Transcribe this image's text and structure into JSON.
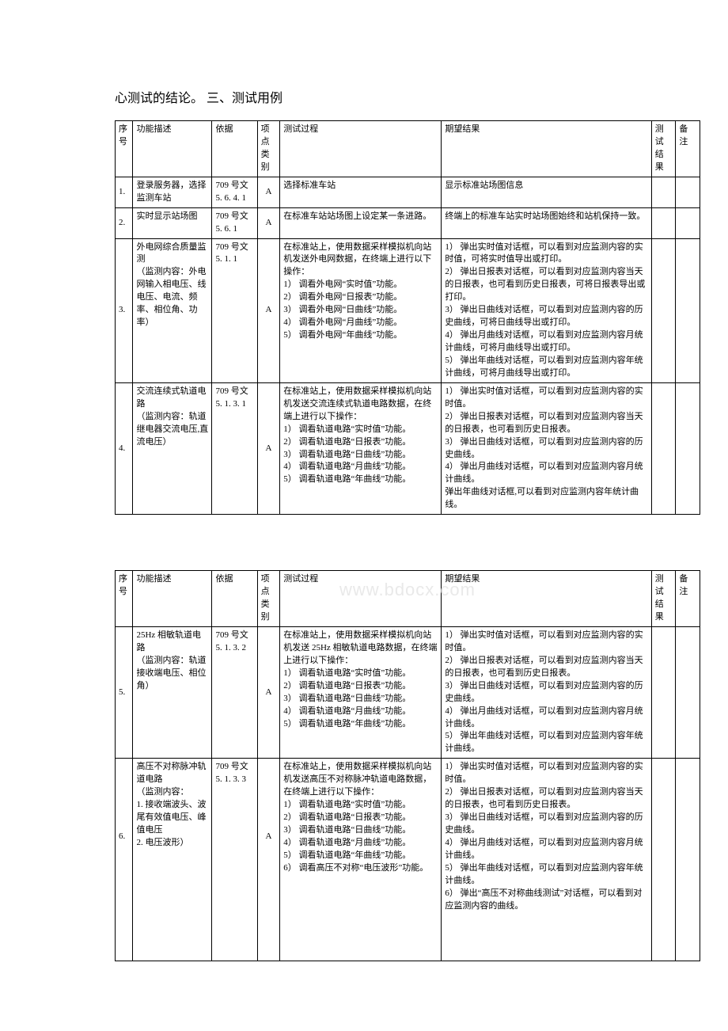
{
  "title": "心测试的结论。 三、测试用例",
  "watermark": "www.bdocx.com",
  "headers": {
    "idx": "序号",
    "func": "功能描述",
    "basis": "依据",
    "cat": "项点类别",
    "proc": "测试过程",
    "exp": "期望结果",
    "res": "测试结果",
    "note": "备注"
  },
  "table1": [
    {
      "idx": "1.",
      "func": "登录服务器，选择监测车站",
      "basis": "709 号文5. 6. 4. 1",
      "cat": "A",
      "proc": "选择标准车站",
      "exp": "显示标准站场图信息"
    },
    {
      "idx": "2.",
      "func": "实时显示站场图",
      "basis": "709 号文5. 6. 1",
      "cat": "A",
      "proc": "在标准车站站场图上设定某一条进路。",
      "exp": "终端上的标准车站实时站场图始终和站机保持一致。"
    },
    {
      "idx": "3.",
      "func": "外电网综合质量监测\n（监测内容：外电网输入相电压、线电压、电流、频率、相位角、功率）",
      "basis": "709 号文5. 1. 1",
      "cat": "A",
      "proc": "在标准站上，使用数据采样模拟机向站机发送外电网数据，在终端上进行以下操作：\n1） 调看外电网“实时值”功能。\n2） 调看外电网“日报表”功能。\n3） 调看外电网“日曲线”功能。\n4） 调看外电网“月曲线”功能。\n5） 调看外电网“年曲线”功能。",
      "exp": "1） 弹出实时值对话框，可以看到对应监测内容的实时值，可将实时值导出或打印。\n2） 弹出日报表对话框，可以看到对应监测内容当天的日报表，也可看到历史日报表，可将日报表导出或打印。\n3） 弹出日曲线对话框，可以看到对应监测内容的历史曲线，可将日曲线导出或打印。\n4） 弹出月曲线对话框，可以看到对应监测内容月统计曲线，可将月曲线导出或打印。\n5） 弹出年曲线对话框，可以看到对应监测内容年统计曲线，可将月曲线导出或打印。"
    },
    {
      "idx": "4.",
      "func": "交流连续式轨道电路\n（监测内容：轨道继电器交流电压,直流电压）",
      "basis": "709 号文5. 1. 3. 1",
      "cat": "A",
      "proc": "在标准站上，使用数据采样模拟机向站机发送交流连续式轨道电路数据，在终端上进行以下操作：\n1） 调看轨道电路“实时值”功能。\n2） 调看轨道电路“日报表”功能。\n3） 调看轨道电路“日曲线”功能。\n4） 调看轨道电路“月曲线”功能。\n5） 调看轨道电路“年曲线”功能。",
      "exp": "1） 弹出实时值对话框，可以看到对应监测内容的实时值。\n2） 弹出日报表对话框，可以看到对应监测内容当天的日报表，也可看到历史日报表。\n3） 弹出日曲线对话框，可以看到对应监测内容的历史曲线。\n4） 弹出月曲线对话框，可以看到对应监测内容月统计曲线。\n弹出年曲线对话框,可以看到对应监测内容年统计曲线。"
    }
  ],
  "table2": [
    {
      "idx": "5.",
      "func": "25Hz 相敏轨道电路\n（监测内容：轨道接收端电压、相位角）",
      "basis": "709 号文5. 1. 3. 2",
      "cat": "A",
      "proc": "在标准站上，使用数据采样模拟机向站机发送 25Hz 相敏轨道电路数据，在终端上进行以下操作：\n1） 调看轨道电路“实时值”功能。\n2） 调看轨道电路“日报表”功能。\n3） 调看轨道电路“日曲线”功能。\n4） 调看轨道电路“月曲线”功能。\n5） 调看轨道电路“年曲线”功能。",
      "exp": "1） 弹出实时值对话框，可以看到对应监测内容的实时值。\n2） 弹出日报表对话框，可以看到对应监测内容当天的日报表，也可看到历史日报表。\n3） 弹出日曲线对话框，可以看到对应监测内容的历史曲线。\n4） 弹出月曲线对话框，可以看到对应监测内容月统计曲线。\n5） 弹出年曲线对话框，可以看到对应监测内容年统计曲线。"
    },
    {
      "idx": "6.",
      "func": "高压不对称脉冲轨道电路\n（监测内容：\n1. 接收端波头、波尾有效值电压、峰值电压\n2. 电压波形）",
      "basis": "709 号文5. 1. 3. 3",
      "cat": "A",
      "proc": "在标准站上，使用数据采样模拟机向站机发送高压不对称脉冲轨道电路数据，在终端上进行以下操作：\n1） 调看轨道电路“实时值”功能。\n2） 调看轨道电路“日报表”功能。\n3） 调看轨道电路“日曲线”功能。\n4） 调看轨道电路“月曲线”功能。\n5） 调看轨道电路“年曲线”功能。\n6） 调看高压不对称“电压波形”功能。",
      "exp": "1） 弹出实时值对话框，可以看到对应监测内容的实时值。\n2） 弹出日报表对话框，可以看到对应监测内容当天的日报表，也可看到历史日报表。\n3） 弹出日曲线对话框，可以看到对应监测内容的历史曲线。\n4） 弹出月曲线对话框，可以看到对应监测内容月统计曲线。\n5） 弹出年曲线对话框，可以看到对应监测内容年统计曲线。\n6） 弹出“高压不对称曲线测试”对话框，可以看到对应监测内容的曲线。"
    }
  ]
}
